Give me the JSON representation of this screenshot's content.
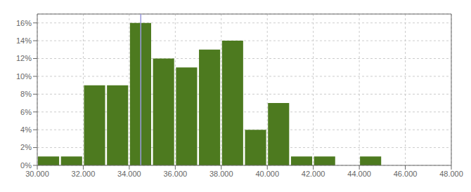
{
  "chart_data": {
    "type": "histogram",
    "bins": [
      30000,
      31000,
      32000,
      33000,
      34000,
      35000,
      36000,
      37000,
      38000,
      39000,
      40000,
      41000,
      42000,
      43000,
      44000,
      45000,
      46000,
      47000,
      48000
    ],
    "values": [
      0.01,
      0.01,
      0.09,
      0.09,
      0.16,
      0.12,
      0.11,
      0.13,
      0.14,
      0.04,
      0.07,
      0.01,
      0.01,
      0.0,
      0.01,
      0.0,
      0.0,
      0.0
    ],
    "color": "#4d7a1f",
    "xlim": [
      30000,
      48000
    ],
    "ylim": [
      0,
      0.17
    ],
    "xticks": [
      {
        "value": 30000,
        "label": "30.000"
      },
      {
        "value": 32000,
        "label": "32.000"
      },
      {
        "value": 34000,
        "label": "34.000"
      },
      {
        "value": 36000,
        "label": "36.000"
      },
      {
        "value": 38000,
        "label": "38.000"
      },
      {
        "value": 40000,
        "label": "40.000"
      },
      {
        "value": 42000,
        "label": "42.000"
      },
      {
        "value": 44000,
        "label": "44.000"
      },
      {
        "value": 46000,
        "label": "46.000"
      },
      {
        "value": 48000,
        "label": "48.000"
      }
    ],
    "yticks": [
      {
        "value": 0,
        "label": "0%"
      },
      {
        "value": 0.02,
        "label": "2%"
      },
      {
        "value": 0.04,
        "label": "4%"
      },
      {
        "value": 0.06,
        "label": "6%"
      },
      {
        "value": 0.08,
        "label": "8%"
      },
      {
        "value": 0.1,
        "label": "10%"
      },
      {
        "value": 0.12,
        "label": "12%"
      },
      {
        "value": 0.14,
        "label": "14%"
      },
      {
        "value": 0.16,
        "label": "16%"
      }
    ],
    "grid": true,
    "lines": [
      {
        "x": 34500,
        "color": "#9999dd"
      }
    ]
  }
}
